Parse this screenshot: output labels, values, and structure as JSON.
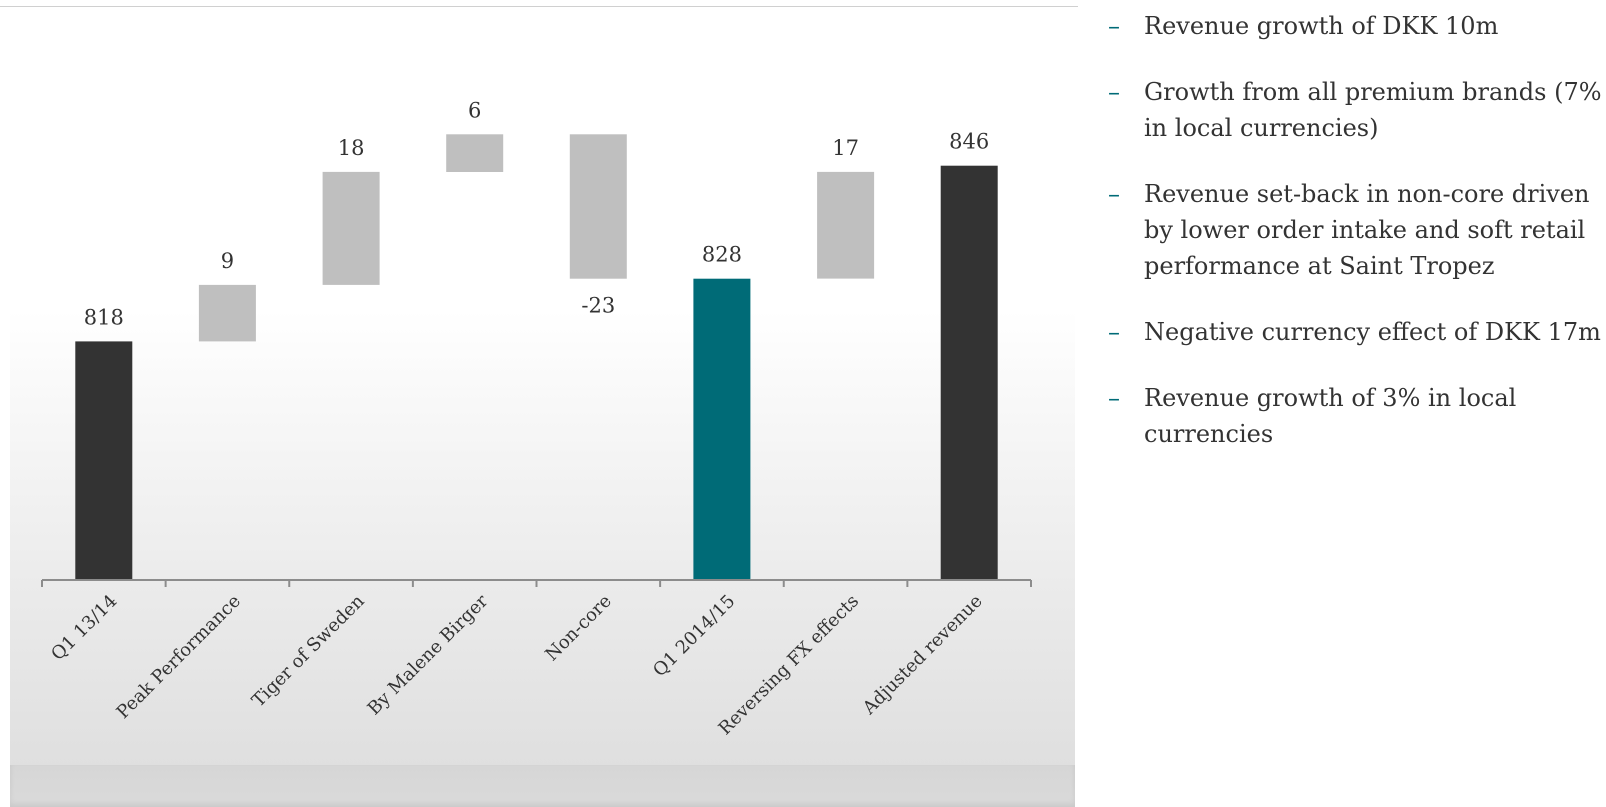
{
  "chart_data": {
    "type": "waterfall",
    "categories": [
      "Q1 13/14",
      "Peak Performance",
      "Tiger of Sweden",
      "By Malene Birger",
      "Non-core",
      "Q1 2014/15",
      "Reversing FX effects",
      "Adjusted revenue"
    ],
    "values": [
      818,
      9,
      18,
      6,
      -23,
      828,
      17,
      846
    ],
    "value_labels": [
      "818",
      "9",
      "18",
      "6",
      "-23",
      "828",
      "17",
      "846"
    ],
    "kinds": [
      "total",
      "delta",
      "delta",
      "delta",
      "delta",
      "total",
      "delta",
      "total"
    ],
    "colors": {
      "total": "#333333",
      "total_highlight": "#006b77",
      "delta": "#bfbfbf"
    },
    "highlight_index": 5,
    "ylim": [
      780,
      852
    ]
  },
  "bullets": [
    "Revenue growth of DKK 10m",
    "Growth from all premium brands (7% in local currencies)",
    "Revenue set-back in non-core driven by lower order intake and soft retail performance at Saint Tropez",
    "Negative currency effect of DKK 17m",
    "Revenue growth of 3% in local currencies"
  ],
  "bullet_marker": "–",
  "accent_color": "#006b77"
}
